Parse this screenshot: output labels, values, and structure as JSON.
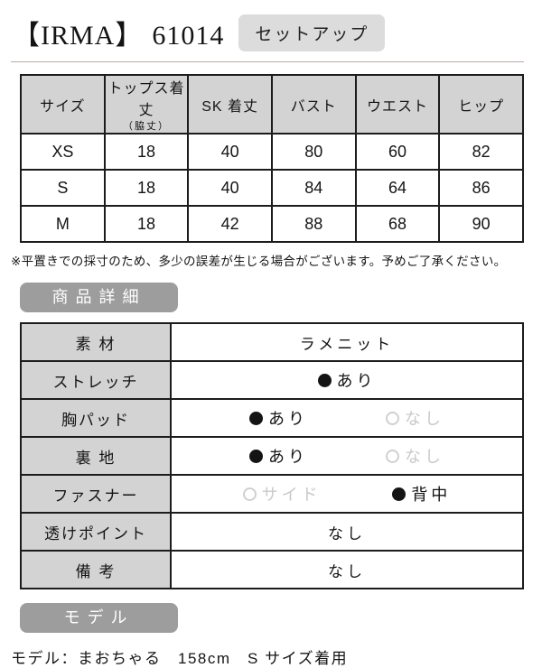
{
  "header": {
    "brand": "【IRMA】",
    "product_code": "61014",
    "tag": "セットアップ"
  },
  "size_table": {
    "headers": [
      {
        "main": "サイズ",
        "sub": ""
      },
      {
        "main": "トップス着丈",
        "sub": "（脇丈）"
      },
      {
        "main": "SK 着丈",
        "sub": ""
      },
      {
        "main": "バスト",
        "sub": ""
      },
      {
        "main": "ウエスト",
        "sub": ""
      },
      {
        "main": "ヒップ",
        "sub": ""
      }
    ],
    "rows": [
      {
        "cells": [
          "XS",
          "18",
          "40",
          "80",
          "60",
          "82"
        ]
      },
      {
        "cells": [
          "S",
          "18",
          "40",
          "84",
          "64",
          "86"
        ]
      },
      {
        "cells": [
          "M",
          "18",
          "42",
          "88",
          "68",
          "90"
        ]
      }
    ],
    "note": "※平置きでの採寸のため、多少の誤差が生じる場合がございます。予めご了承ください。"
  },
  "sections": {
    "details_heading": "商品詳細",
    "model_heading": "モデル"
  },
  "details_table": {
    "rows": [
      {
        "label": "素 材",
        "value": "ラメニット"
      },
      {
        "label": "ストレッチ",
        "options": [
          {
            "label": "あり",
            "selected": true
          }
        ]
      },
      {
        "label": "胸パッド",
        "options": [
          {
            "label": "あり",
            "selected": true
          },
          {
            "label": "なし",
            "selected": false
          }
        ]
      },
      {
        "label": "裏 地",
        "options": [
          {
            "label": "あり",
            "selected": true
          },
          {
            "label": "なし",
            "selected": false
          }
        ]
      },
      {
        "label": "ファスナー",
        "options": [
          {
            "label": "サイド",
            "selected": false
          },
          {
            "label": "背中",
            "selected": true
          }
        ]
      },
      {
        "label": "透けポイント",
        "value": "なし"
      },
      {
        "label": "備 考",
        "value": "なし"
      }
    ]
  },
  "model": {
    "line": "モデル：まおちゃる　158cm　S サイズ着用"
  },
  "colors": {
    "table_header_bg": "#d3d3d3",
    "section_badge_bg": "#9d9d9d",
    "tag_bg": "#dcdcdc",
    "unselected_text": "#c9c9c9",
    "table_border": "#1c1c1c"
  }
}
